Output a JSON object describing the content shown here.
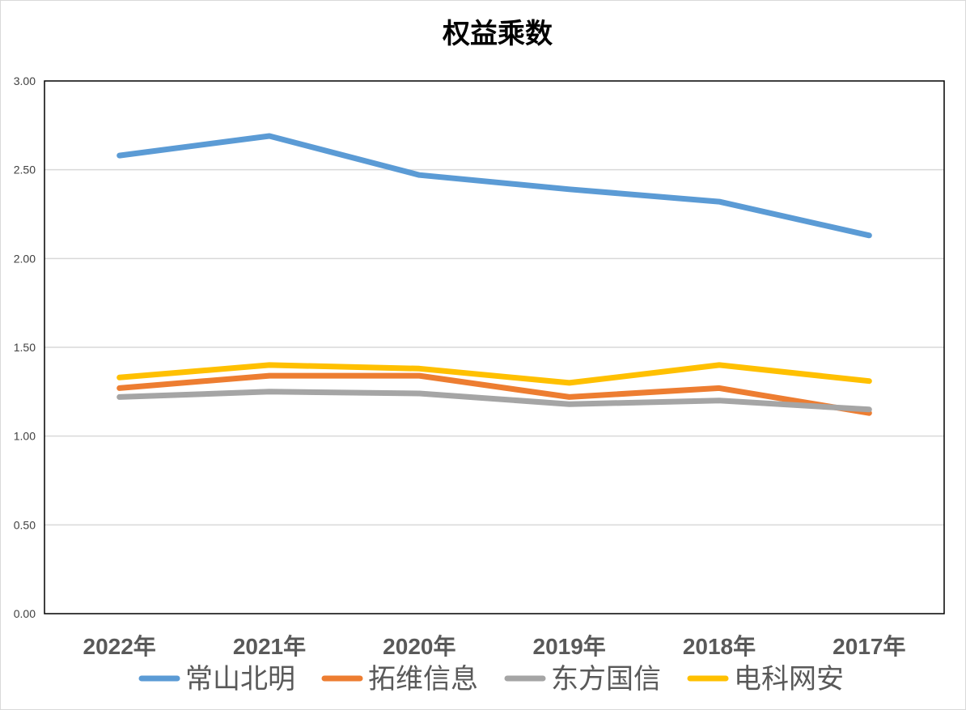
{
  "chart_data": {
    "type": "line",
    "title": "权益乘数",
    "xlabel": "",
    "ylabel": "",
    "categories": [
      "2022年",
      "2021年",
      "2020年",
      "2019年",
      "2018年",
      "2017年"
    ],
    "ylim": [
      0,
      3
    ],
    "yticks": [
      "0.00",
      "0.50",
      "1.00",
      "1.50",
      "2.00",
      "2.50",
      "3.00"
    ],
    "grid": true,
    "legend_position": "bottom",
    "series": [
      {
        "name": "常山北明",
        "color": "#5b9bd5",
        "values": [
          2.58,
          2.69,
          2.47,
          2.39,
          2.32,
          2.13
        ]
      },
      {
        "name": "拓维信息",
        "color": "#ed7d31",
        "values": [
          1.27,
          1.34,
          1.34,
          1.22,
          1.27,
          1.13
        ]
      },
      {
        "name": "东方国信",
        "color": "#a5a5a5",
        "values": [
          1.22,
          1.25,
          1.24,
          1.18,
          1.2,
          1.15
        ]
      },
      {
        "name": "电科网安",
        "color": "#ffc000",
        "values": [
          1.33,
          1.4,
          1.38,
          1.3,
          1.4,
          1.31
        ]
      }
    ]
  }
}
